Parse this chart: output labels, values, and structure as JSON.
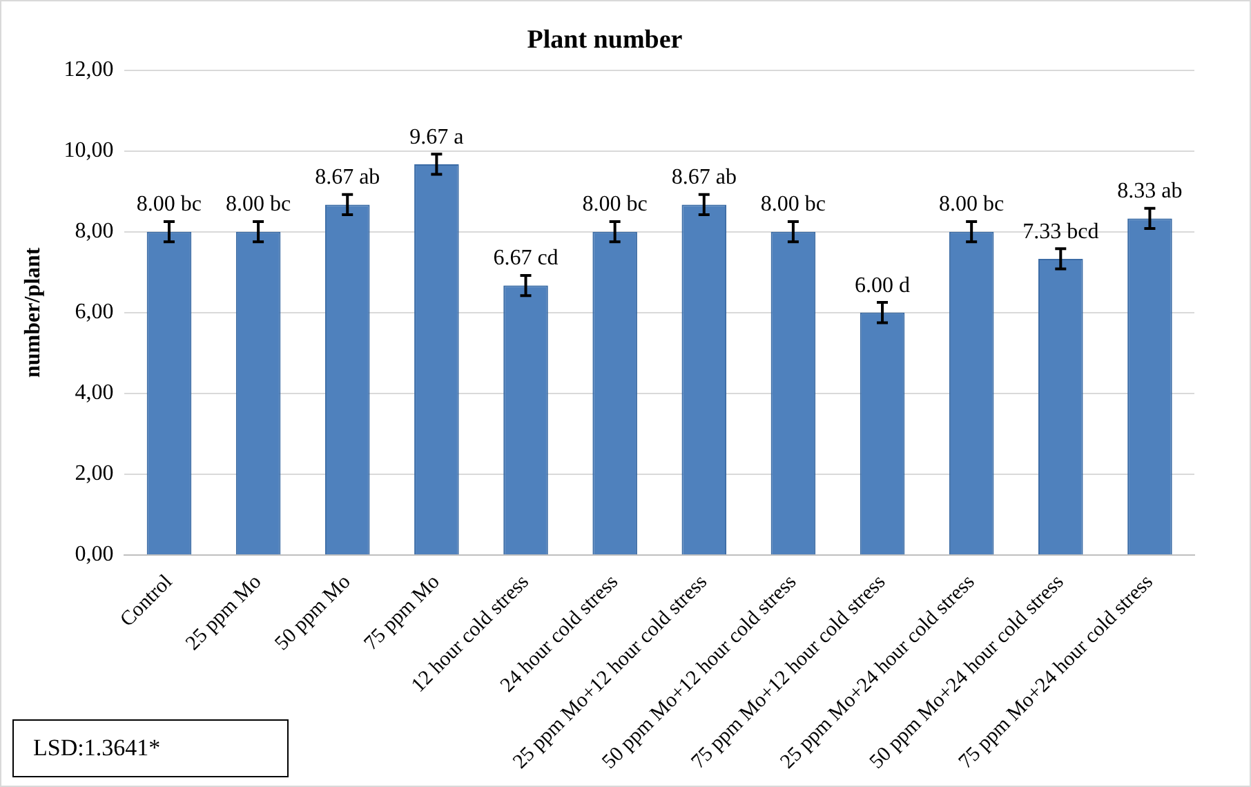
{
  "chart_data": {
    "type": "bar",
    "title": "Plant number",
    "ylabel": "number/plant",
    "categories": [
      "Control",
      "25 ppm Mo",
      "50 ppm Mo",
      "75 ppm Mo",
      "12 hour cold stress",
      "24 hour cold stress",
      "25 ppm Mo+12 hour cold stress",
      "50 ppm Mo+12 hour cold stress",
      "75 ppm Mo+12 hour cold stress",
      "25 ppm Mo+24 hour cold stress",
      "50 ppm Mo+24 hour cold stress",
      "75 ppm Mo+24 hour cold stress"
    ],
    "values": [
      8.0,
      8.0,
      8.67,
      9.67,
      6.67,
      8.0,
      8.67,
      8.0,
      6.0,
      8.0,
      7.33,
      8.33
    ],
    "errors": [
      0.25,
      0.25,
      0.25,
      0.25,
      0.25,
      0.25,
      0.25,
      0.25,
      0.25,
      0.25,
      0.25,
      0.25
    ],
    "value_labels": [
      "8.00 bc",
      "8.00 bc",
      "8.67 ab",
      "9.67 a",
      "6.67 cd",
      "8.00 bc",
      "8.67 ab",
      "8.00 bc",
      "6.00 d",
      "8.00 bc",
      "7.33 bcd",
      "8.33 ab"
    ],
    "color": "#4f81bd",
    "ylim": [
      0,
      12
    ],
    "yticks": [
      {
        "value": 0,
        "label": "0,00"
      },
      {
        "value": 2,
        "label": "2,00"
      },
      {
        "value": 4,
        "label": "4,00"
      },
      {
        "value": 6,
        "label": "6,00"
      },
      {
        "value": 8,
        "label": "8,00"
      },
      {
        "value": 10,
        "label": "10,00"
      },
      {
        "value": 12,
        "label": "12,00"
      }
    ],
    "grid": "y",
    "annotations": [
      "LSD:1.3641*"
    ]
  }
}
